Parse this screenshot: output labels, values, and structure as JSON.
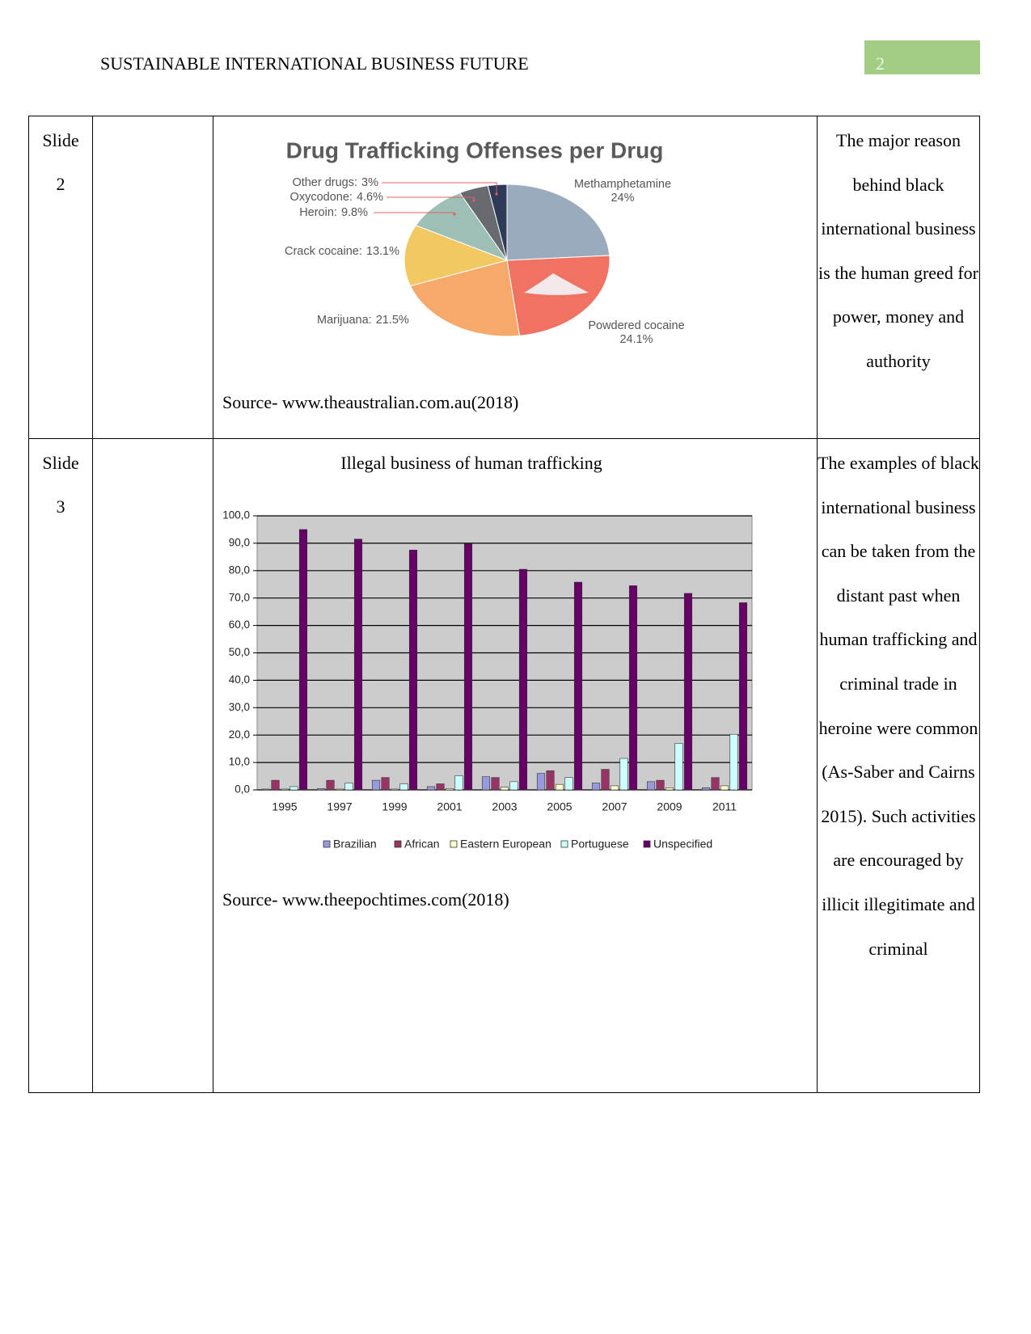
{
  "header": {
    "title": "SUSTAINABLE INTERNATIONAL BUSINESS FUTURE",
    "page_number": "2"
  },
  "table": {
    "rows": [
      {
        "slide": "Slide 2",
        "source": "Source- www.theaustralian.com.au(2018)",
        "text": "The major reason behind black international business is the human greed for power, money and authority"
      },
      {
        "slide": "Slide 3",
        "caption": "Illegal business of human trafficking",
        "source": "Source- www.theepochtimes.com(2018)",
        "text": "The examples of black international business can be taken from the distant past when human trafficking and criminal trade in heroine were common (As-Saber and Cairns 2015). Such activities are encouraged by illicit illegitimate and criminal"
      }
    ]
  },
  "chart_data": [
    {
      "type": "pie",
      "title": "Drug Trafficking Offenses per Drug",
      "categories": [
        "Methamphetamine",
        "Powdered cocaine",
        "Marijuana:",
        "Crack cocaine:",
        "Heroin:",
        "Oxycodone:",
        "Other drugs:"
      ],
      "values": [
        24,
        24.1,
        21.5,
        13.1,
        9.8,
        4.6,
        3
      ],
      "value_labels": [
        "24%",
        "24.1%",
        "21.5%",
        "13.1%",
        "9.8%",
        "4.6%",
        "3%"
      ],
      "colors": [
        "#9aabbe",
        "#f07262",
        "#f6a96a",
        "#f2c862",
        "#9ebfb6",
        "#676b70",
        "#2f3a56"
      ]
    },
    {
      "type": "bar",
      "categories": [
        "1995",
        "1997",
        "1999",
        "2001",
        "2003",
        "2005",
        "2007",
        "2009",
        "2011"
      ],
      "series": [
        {
          "name": "Brazilian",
          "color": "#9999dd",
          "values": [
            0.3,
            0.5,
            3.5,
            1.2,
            4.8,
            6.0,
            2.5,
            3.0,
            0.8
          ]
        },
        {
          "name": "African",
          "color": "#993366",
          "values": [
            3.5,
            3.5,
            4.5,
            2.2,
            4.5,
            7.0,
            7.5,
            3.5,
            4.5
          ]
        },
        {
          "name": "Eastern European",
          "color": "#ffffcc",
          "values": [
            0.3,
            0.3,
            0.3,
            0.5,
            1.0,
            2.0,
            1.5,
            0.8,
            1.5
          ]
        },
        {
          "name": "Portuguese",
          "color": "#ccffff",
          "values": [
            1.2,
            2.5,
            2.2,
            5.2,
            3.0,
            4.5,
            11.5,
            17.0,
            20.3
          ]
        },
        {
          "name": "Unspecified",
          "color": "#660066",
          "values": [
            95,
            91.5,
            87.5,
            89.8,
            80.5,
            75.8,
            74.5,
            71.7,
            68.3
          ]
        }
      ],
      "ylim": [
        0,
        100
      ],
      "yticks": [
        {
          "value": 0,
          "label": "0,0"
        },
        {
          "value": 10,
          "label": "10,0"
        },
        {
          "value": 20,
          "label": "20,0"
        },
        {
          "value": 30,
          "label": "30,0"
        },
        {
          "value": 40,
          "label": "40,0"
        },
        {
          "value": 50,
          "label": "50,0"
        },
        {
          "value": 60,
          "label": "60,0"
        },
        {
          "value": 70,
          "label": "70,0"
        },
        {
          "value": 80,
          "label": "80,0"
        },
        {
          "value": 90,
          "label": "90,0"
        },
        {
          "value": 100,
          "label": "100,0"
        }
      ],
      "grid": true,
      "legend": "bottom"
    }
  ]
}
